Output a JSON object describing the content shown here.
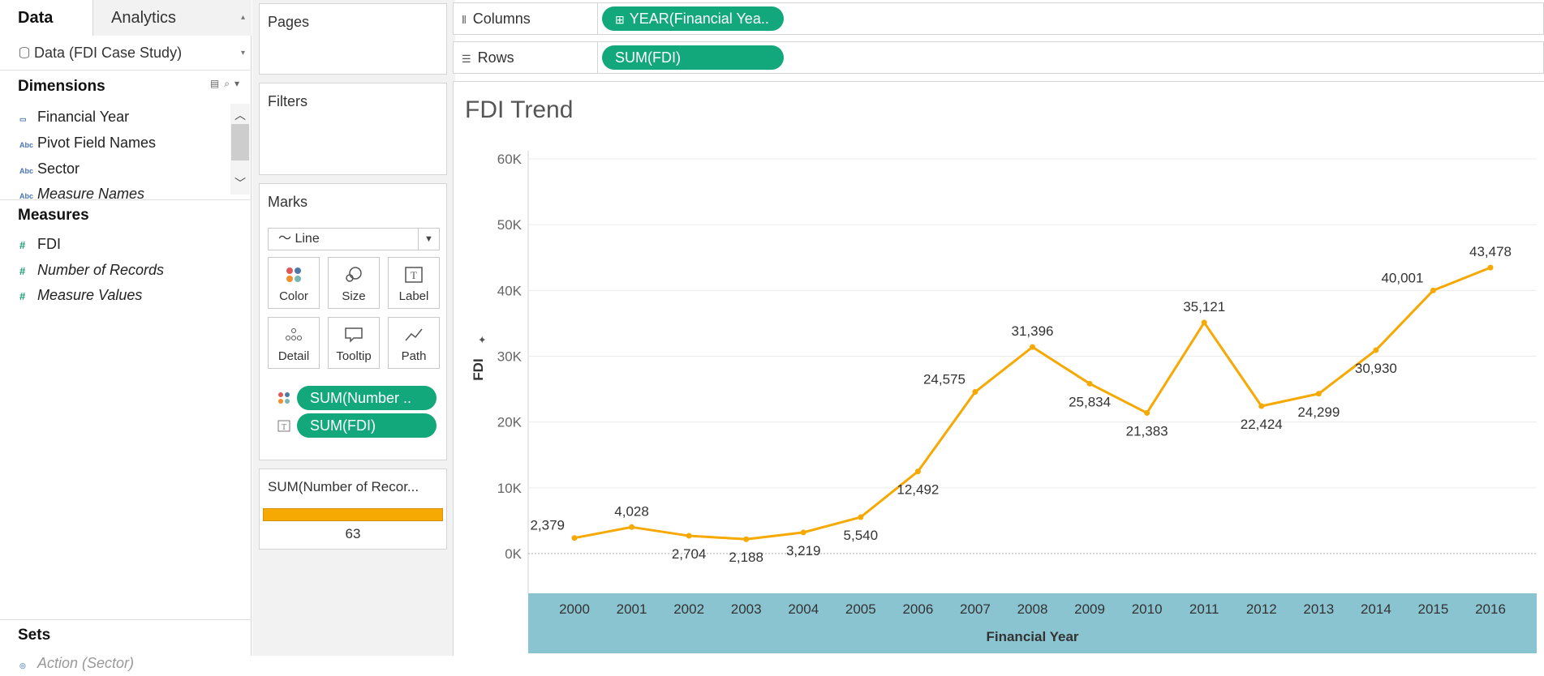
{
  "data_pane": {
    "tabs": [
      {
        "label": "Data",
        "active": true
      },
      {
        "label": "Analytics",
        "active": false
      }
    ],
    "datasource": "Data (FDI Case Study)",
    "dimensions_title": "Dimensions",
    "dimensions": [
      {
        "label": "Financial Year",
        "icon": "calendar-icon",
        "italic": false
      },
      {
        "label": "Pivot Field Names",
        "icon": "abc-icon",
        "italic": false
      },
      {
        "label": "Sector",
        "icon": "abc-icon",
        "italic": false
      },
      {
        "label": "Measure Names",
        "icon": "abc-icon",
        "italic": true
      }
    ],
    "measures_title": "Measures",
    "measures": [
      {
        "label": "FDI",
        "icon": "number-icon",
        "italic": false
      },
      {
        "label": "Number of Records",
        "icon": "number-icon",
        "italic": true
      },
      {
        "label": "Measure Values",
        "icon": "number-icon",
        "italic": true
      }
    ],
    "sets_title": "Sets",
    "sets": [
      {
        "label": "Action (Sector)",
        "icon": "set-icon"
      }
    ]
  },
  "cards": {
    "pages_title": "Pages",
    "filters_title": "Filters",
    "marks_title": "Marks",
    "mark_type": "Line",
    "mark_buttons": [
      "Color",
      "Size",
      "Label",
      "Detail",
      "Tooltip",
      "Path"
    ],
    "mark_pills": [
      {
        "label": "SUM(Number ..",
        "icon": "color-dots-icon"
      },
      {
        "label": "SUM(FDI)",
        "icon": "label-icon"
      }
    ],
    "legend_title": "SUM(Number of Recor...",
    "legend_value": "63",
    "legend_color": "#f6a803"
  },
  "shelves": {
    "columns_label": "Columns",
    "columns_pill": "YEAR(Financial Yea..",
    "rows_label": "Rows",
    "rows_pill": "SUM(FDI)"
  },
  "view": {
    "title": "FDI Trend"
  },
  "chart_data": {
    "type": "line",
    "title": "FDI Trend",
    "xlabel": "Financial Year",
    "ylabel": "FDI",
    "x": [
      "2000",
      "2001",
      "2002",
      "2003",
      "2004",
      "2005",
      "2006",
      "2007",
      "2008",
      "2009",
      "2010",
      "2011",
      "2012",
      "2013",
      "2014",
      "2015",
      "2016"
    ],
    "values": [
      2379,
      4028,
      2704,
      2188,
      3219,
      5540,
      12492,
      24575,
      31396,
      25834,
      21383,
      35121,
      22424,
      24299,
      30930,
      40001,
      43478
    ],
    "data_labels": [
      "2,379",
      "4,028",
      "2,704",
      "2,188",
      "3,219",
      "5,540",
      "12,492",
      "24,575",
      "31,396",
      "25,834",
      "21,383",
      "35,121",
      "22,424",
      "24,299",
      "30,930",
      "40,001",
      "43,478"
    ],
    "label_position": [
      "left",
      "above",
      "below",
      "below",
      "below",
      "below",
      "below",
      "left",
      "above",
      "below",
      "below",
      "above",
      "below",
      "below",
      "below",
      "left",
      "above"
    ],
    "y_ticks": [
      0,
      10000,
      20000,
      30000,
      40000,
      50000,
      60000
    ],
    "y_tick_labels": [
      "0K",
      "10K",
      "20K",
      "30K",
      "40K",
      "50K",
      "60K"
    ],
    "ylim": [
      0,
      60000
    ],
    "grid": true,
    "line_color": "#f6a803",
    "axis_band_color": "#8bc4d1"
  }
}
